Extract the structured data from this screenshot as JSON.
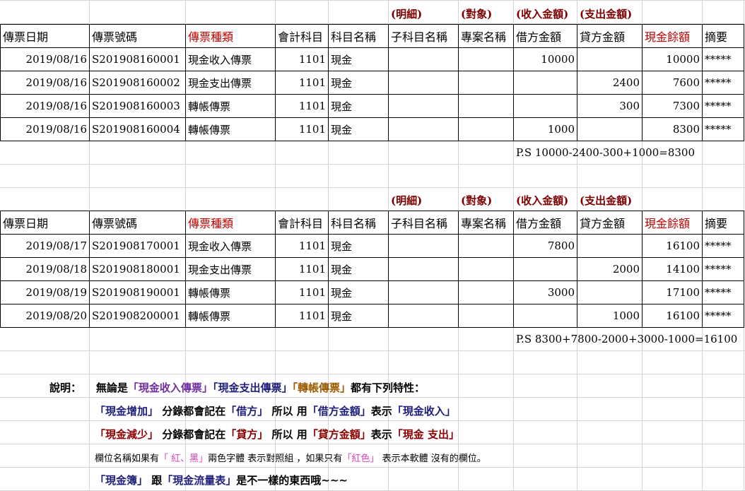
{
  "colors": {
    "header_red": "#c00000",
    "label_maroon": "#7b0000",
    "navy": "#1f1f7a",
    "purple": "#7030a0",
    "brown": "#9c5a00",
    "magenta": "#e040c0"
  },
  "label_row": [
    "(明細)",
    "(對象)",
    "(收入金額)",
    "(支出金額)"
  ],
  "headers": [
    "傳票日期",
    "傳票號碼",
    "傳票種類",
    "會計科目",
    "科目名稱",
    "子科目名稱",
    "專案名稱",
    "借方金額",
    "貸方金額",
    "現金餘額",
    "摘要"
  ],
  "table1": {
    "rows": [
      {
        "date": "2019/08/16",
        "no": "S201908160001",
        "type": "現金收入傳票",
        "acct": "1101",
        "name": "現金",
        "sub": "",
        "proj": "",
        "debit": "10000",
        "credit": "",
        "balance": "10000",
        "memo": "*****"
      },
      {
        "date": "2019/08/16",
        "no": "S201908160002",
        "type": "現金支出傳票",
        "acct": "1101",
        "name": "現金",
        "sub": "",
        "proj": "",
        "debit": "",
        "credit": "2400",
        "balance": "7600",
        "memo": "*****"
      },
      {
        "date": "2019/08/16",
        "no": "S201908160003",
        "type": "轉帳傳票",
        "acct": "1101",
        "name": "現金",
        "sub": "",
        "proj": "",
        "debit": "",
        "credit": "300",
        "balance": "7300",
        "memo": "*****"
      },
      {
        "date": "2019/08/16",
        "no": "S201908160004",
        "type": "轉帳傳票",
        "acct": "1101",
        "name": "現金",
        "sub": "",
        "proj": "",
        "debit": "1000",
        "credit": "",
        "balance": "8300",
        "memo": "*****"
      }
    ],
    "ps": "P.S  10000-2400-300+1000=8300"
  },
  "table2": {
    "rows": [
      {
        "date": "2019/08/17",
        "no": "S201908170001",
        "type": "現金收入傳票",
        "acct": "1101",
        "name": "現金",
        "sub": "",
        "proj": "",
        "debit": "7800",
        "credit": "",
        "balance": "16100",
        "memo": "*****"
      },
      {
        "date": "2019/08/18",
        "no": "S201908180001",
        "type": "現金支出傳票",
        "acct": "1101",
        "name": "現金",
        "sub": "",
        "proj": "",
        "debit": "",
        "credit": "2000",
        "balance": "14100",
        "memo": "*****"
      },
      {
        "date": "2019/08/19",
        "no": "S201908190001",
        "type": "轉帳傳票",
        "acct": "1101",
        "name": "現金",
        "sub": "",
        "proj": "",
        "debit": "3000",
        "credit": "",
        "balance": "17100",
        "memo": "*****"
      },
      {
        "date": "2019/08/20",
        "no": "S201908200001",
        "type": "轉帳傳票",
        "acct": "1101",
        "name": "現金",
        "sub": "",
        "proj": "",
        "debit": "",
        "credit": "1000",
        "balance": "16100",
        "memo": "*****"
      }
    ],
    "ps": "P.S  8300+7800-2000+3000-1000=16100"
  },
  "notes": {
    "line1": {
      "prefix": "說明：",
      "a": "無論是",
      "b": "「現金收入傳票」",
      "c": "「現金支出傳票」",
      "d": "「轉帳傳票」",
      "e": "都有下列特性："
    },
    "line2": {
      "a": "「現金增加」",
      "b": " 分錄都會記在",
      "c": "「借方」",
      "d": " 所以 用",
      "e": "「借方金額」",
      "f": "表示",
      "g": "「現金收入」"
    },
    "line3": {
      "a": "「現金減少」",
      "b": " 分錄都會記在",
      "c": "「貸方」",
      "d": " 所以 用",
      "e": "「貸方金額」",
      "f": "表示",
      "g": "「現金  支出」"
    },
    "line4": {
      "a": "欄位名稱如果有",
      "b": "「 紅、黑」",
      "c": "兩色字體  表示對照組  ，如果只有",
      "d": "「紅色」",
      "e": " 表示本軟體  沒有的欄位。"
    },
    "line5": {
      "a": "「現金簿」",
      "b": " 跟",
      "c": "「現金流量表」",
      "d": "是不一樣的東西哦~~~"
    }
  }
}
